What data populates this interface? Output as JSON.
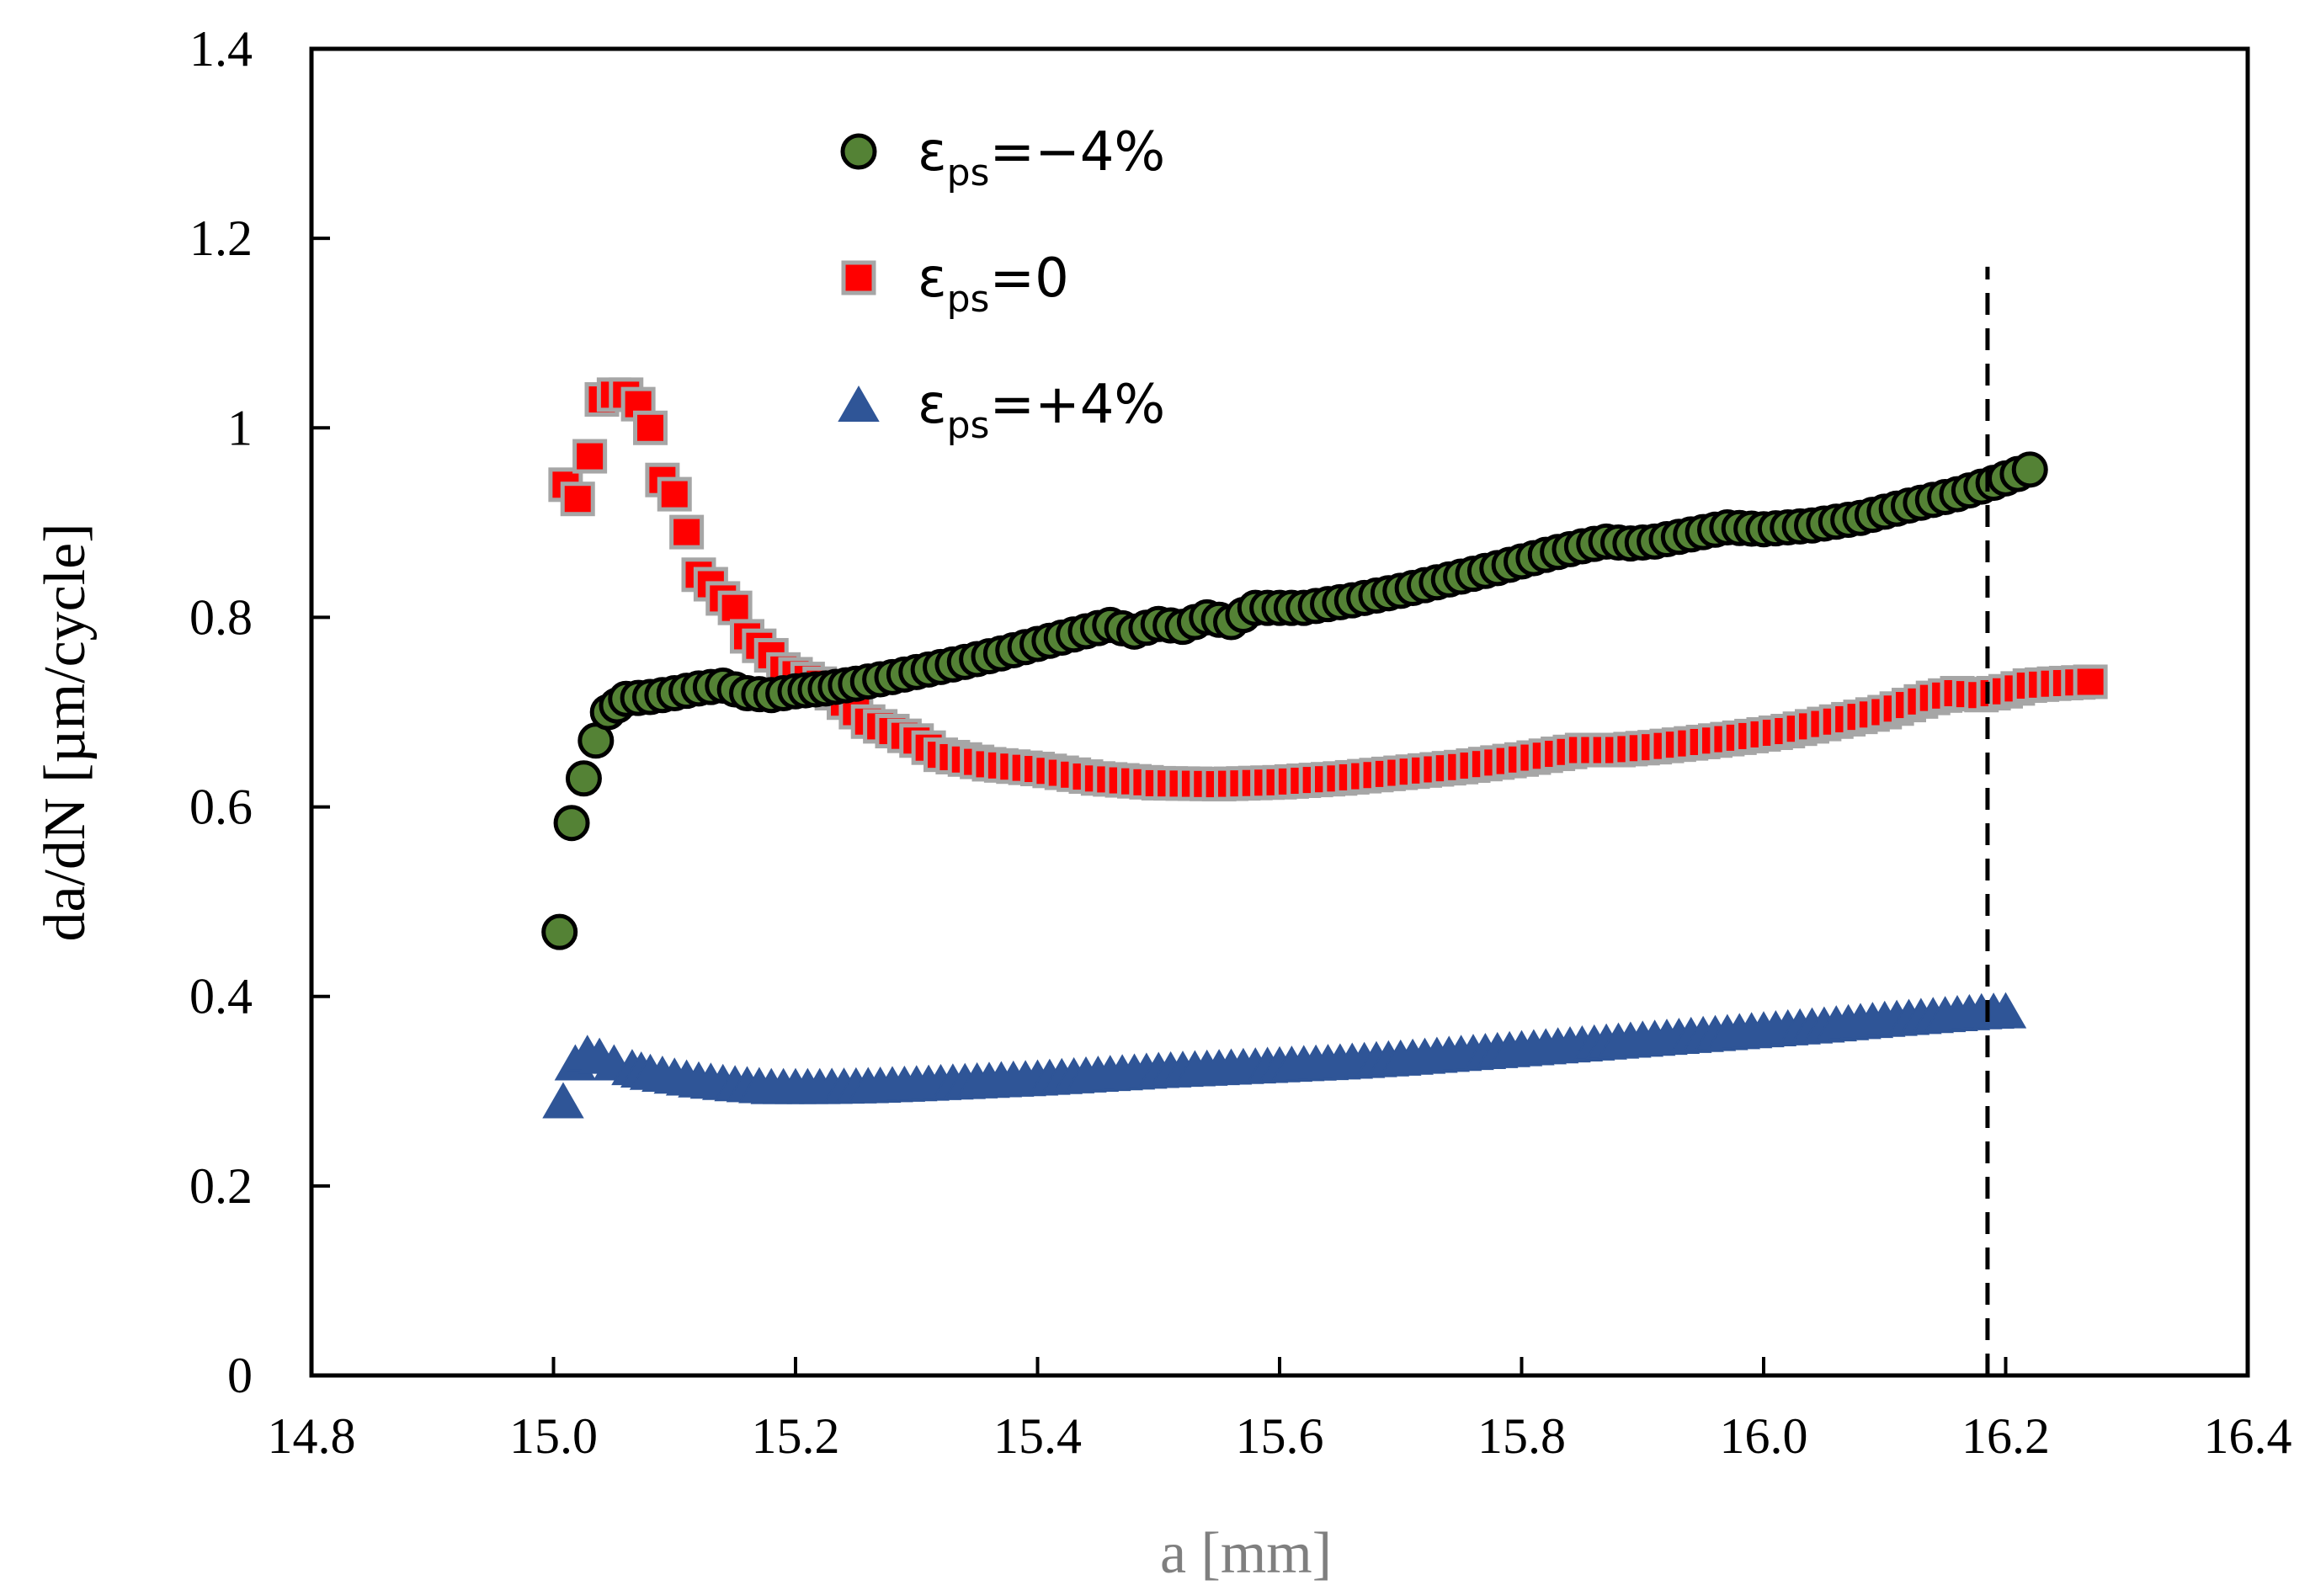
{
  "chart_data": {
    "type": "scatter",
    "title": "",
    "xlabel": "a [mm]",
    "ylabel": "da/dN [µm/cycle]",
    "xlim": [
      14.8,
      16.4
    ],
    "ylim": [
      0,
      1.4
    ],
    "xticks": [
      14.8,
      15.0,
      15.2,
      15.4,
      15.6,
      15.8,
      16.0,
      16.2,
      16.4
    ],
    "xtick_labels": [
      "14.8",
      "15.0",
      "15.2",
      "15.4",
      "15.6",
      "15.8",
      "16.0",
      "16.2",
      "16.4"
    ],
    "yticks": [
      0,
      0.2,
      0.4,
      0.6,
      0.8,
      1.0,
      1.2,
      1.4
    ],
    "ytick_labels": [
      "0",
      "0.2",
      "0.4",
      "0.6",
      "0.8",
      "1",
      "1.2",
      "1.4"
    ],
    "grid": false,
    "legend_position": "top-center",
    "reference_line": {
      "style": "dashed",
      "x": 16.185,
      "y_range": [
        0,
        1.17
      ],
      "color": "#000000"
    },
    "series": [
      {
        "name": "εps=−4%",
        "legend": {
          "symbol": "ε",
          "subscript": "ps",
          "suffix": "=−4%"
        },
        "marker": "circle",
        "color": "#548235",
        "edgecolor": "#000000",
        "x": [
          15.005,
          15.015,
          15.025,
          15.035,
          15.045,
          15.06,
          15.08,
          15.1,
          15.12,
          15.14,
          15.16,
          15.18,
          15.2,
          15.225,
          15.25,
          15.28,
          15.31,
          15.34,
          15.37,
          15.4,
          15.43,
          15.46,
          15.48,
          15.5,
          15.52,
          15.54,
          15.56,
          15.58,
          15.62,
          15.66,
          15.7,
          15.74,
          15.78,
          15.82,
          15.85,
          15.87,
          15.89,
          15.91,
          15.93,
          15.95,
          15.97,
          16.0,
          16.04,
          16.08,
          16.12,
          16.16,
          16.19,
          16.22
        ],
        "y": [
          0.468,
          0.583,
          0.63,
          0.67,
          0.7,
          0.714,
          0.716,
          0.72,
          0.725,
          0.728,
          0.72,
          0.718,
          0.722,
          0.725,
          0.73,
          0.737,
          0.745,
          0.753,
          0.762,
          0.772,
          0.782,
          0.792,
          0.785,
          0.793,
          0.79,
          0.8,
          0.795,
          0.81,
          0.81,
          0.818,
          0.828,
          0.84,
          0.852,
          0.866,
          0.875,
          0.88,
          0.878,
          0.88,
          0.885,
          0.89,
          0.895,
          0.893,
          0.897,
          0.905,
          0.918,
          0.93,
          0.942,
          0.956
        ]
      },
      {
        "name": "εps=0",
        "legend": {
          "symbol": "ε",
          "subscript": "ps",
          "suffix": "=0"
        },
        "marker": "square",
        "color": "#ff0000",
        "edgecolor": "#a6a6a6",
        "x": [
          15.01,
          15.02,
          15.03,
          15.04,
          15.05,
          15.06,
          15.07,
          15.08,
          15.09,
          15.1,
          15.11,
          15.12,
          15.13,
          15.14,
          15.15,
          15.16,
          15.17,
          15.18,
          15.19,
          15.2,
          15.22,
          15.24,
          15.26,
          15.28,
          15.3,
          15.32,
          15.36,
          15.4,
          15.45,
          15.5,
          15.55,
          15.6,
          15.65,
          15.7,
          15.75,
          15.8,
          15.85,
          15.88,
          15.91,
          15.94,
          15.98,
          16.02,
          16.06,
          16.1,
          16.14,
          16.16,
          16.18,
          16.2,
          16.22,
          16.24,
          16.27
        ],
        "y": [
          0.94,
          0.925,
          0.97,
          1.03,
          1.035,
          1.035,
          1.025,
          1.0,
          0.945,
          0.93,
          0.89,
          0.845,
          0.835,
          0.82,
          0.81,
          0.78,
          0.77,
          0.76,
          0.745,
          0.74,
          0.73,
          0.71,
          0.69,
          0.68,
          0.67,
          0.655,
          0.645,
          0.64,
          0.63,
          0.625,
          0.624,
          0.626,
          0.63,
          0.636,
          0.642,
          0.65,
          0.66,
          0.66,
          0.663,
          0.667,
          0.673,
          0.68,
          0.69,
          0.7,
          0.715,
          0.72,
          0.718,
          0.722,
          0.728,
          0.73,
          0.732
        ]
      },
      {
        "name": "εps=+4%",
        "legend": {
          "symbol": "ε",
          "subscript": "ps",
          "suffix": "=+4%"
        },
        "marker": "triangle",
        "color": "#2f5597",
        "edgecolor": "#2f5597",
        "x": [
          15.008,
          15.018,
          15.028,
          15.038,
          15.05,
          15.065,
          15.08,
          15.1,
          15.12,
          15.15,
          15.18,
          15.22,
          15.26,
          15.3,
          15.35,
          15.4,
          15.45,
          15.5,
          15.55,
          15.6,
          15.65,
          15.7,
          15.75,
          15.8,
          15.85,
          15.9,
          15.95,
          16.0,
          16.05,
          16.1,
          16.15,
          16.18,
          16.2
        ],
        "y": [
          0.29,
          0.33,
          0.34,
          0.337,
          0.33,
          0.325,
          0.32,
          0.316,
          0.312,
          0.308,
          0.305,
          0.305,
          0.306,
          0.308,
          0.311,
          0.314,
          0.318,
          0.322,
          0.325,
          0.328,
          0.331,
          0.335,
          0.34,
          0.345,
          0.35,
          0.355,
          0.36,
          0.365,
          0.37,
          0.376,
          0.381,
          0.384,
          0.385
        ]
      }
    ]
  }
}
